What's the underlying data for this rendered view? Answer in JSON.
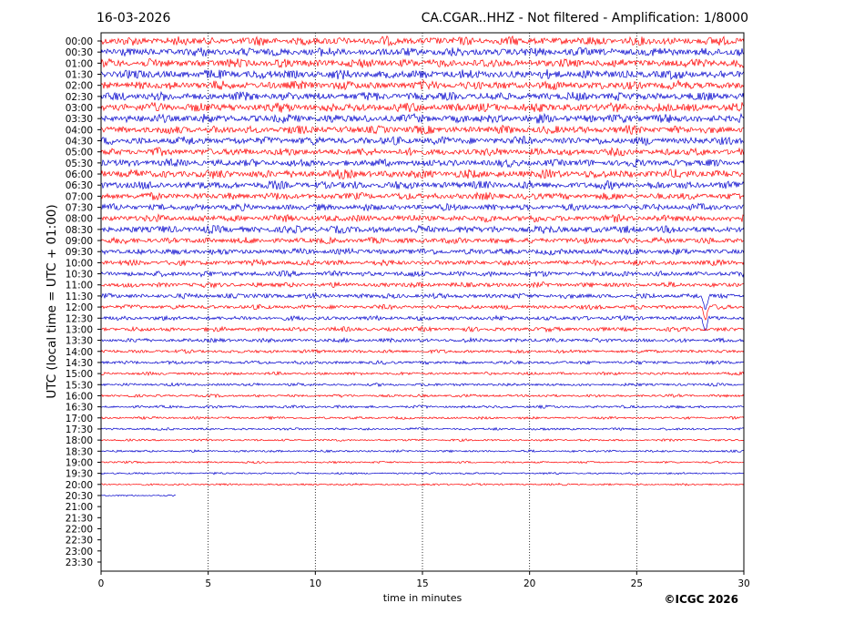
{
  "header": {
    "date": "16-03-2026",
    "station_title": "CA.CGAR..HHZ - Not filtered - Amplification: 1/8000"
  },
  "footer": {
    "copyright": "©ICGC 2026"
  },
  "chart_data": {
    "type": "line",
    "subtype": "helicorder",
    "title": "CA.CGAR..HHZ - Not filtered - Amplification: 1/8000",
    "date": "16-03-2026",
    "xlabel": "time in minutes",
    "ylabel": "UTC (local time = UTC + 01:00)",
    "xlim": [
      0,
      30
    ],
    "x_ticks": [
      0,
      5,
      10,
      15,
      20,
      25,
      30
    ],
    "x_gridlines": [
      5,
      10,
      15,
      20,
      25
    ],
    "grid": "vertical dotted",
    "row_labels": [
      "00:00",
      "00:30",
      "01:00",
      "01:30",
      "02:00",
      "02:30",
      "03:00",
      "03:30",
      "04:00",
      "04:30",
      "05:00",
      "05:30",
      "06:00",
      "06:30",
      "07:00",
      "07:30",
      "08:00",
      "08:30",
      "09:00",
      "09:30",
      "10:00",
      "10:30",
      "11:00",
      "11:30",
      "12:00",
      "12:30",
      "13:00",
      "13:30",
      "14:00",
      "14:30",
      "15:00",
      "15:30",
      "16:00",
      "16:30",
      "17:00",
      "17:30",
      "18:00",
      "18:30",
      "19:00",
      "19:30",
      "20:00",
      "20:30",
      "21:00",
      "21:30",
      "22:00",
      "22:30",
      "23:00",
      "23:30"
    ],
    "trace_colors": [
      "#ff0000",
      "#0000cc"
    ],
    "color_alternation": "odd rows red, even rows blue",
    "complete_rows": 41,
    "last_row_label": "20:30",
    "last_row_end_minute": 3.5,
    "row_amplitudes": [
      0.85,
      0.85,
      0.85,
      0.9,
      0.85,
      0.85,
      0.9,
      0.85,
      0.8,
      0.8,
      0.75,
      0.75,
      0.85,
      0.8,
      0.7,
      0.65,
      0.7,
      0.75,
      0.6,
      0.6,
      0.55,
      0.55,
      0.5,
      0.5,
      0.45,
      0.45,
      0.45,
      0.4,
      0.35,
      0.35,
      0.3,
      0.3,
      0.28,
      0.28,
      0.25,
      0.25,
      0.22,
      0.22,
      0.2,
      0.2,
      0.2,
      0.15
    ],
    "annotations": [
      {
        "row": "11:30",
        "minute": 28.2,
        "kind": "spike",
        "amplitude": 1.6
      },
      {
        "row": "12:00",
        "minute": 28.2,
        "kind": "spike",
        "amplitude": 1.5
      },
      {
        "row": "12:30",
        "minute": 28.2,
        "kind": "spike",
        "amplitude": 1.2
      }
    ]
  }
}
